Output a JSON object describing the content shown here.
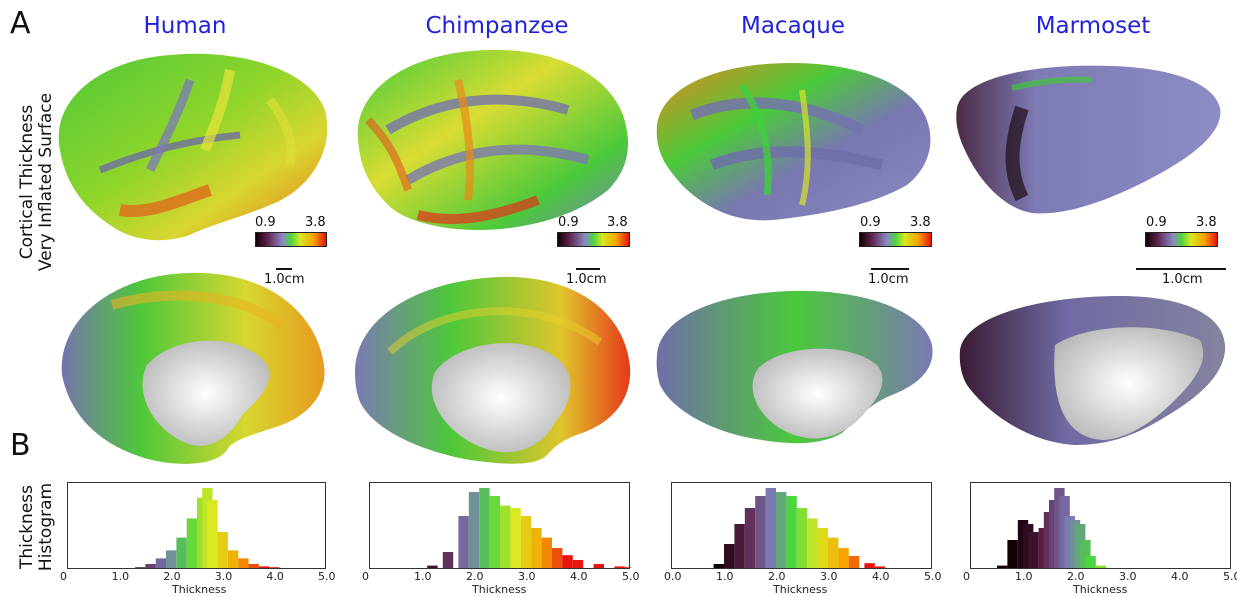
{
  "panel_labels": {
    "a": "A",
    "b": "B"
  },
  "side_labels": {
    "surface_line1": "Cortical Thickness",
    "surface_line2": "Very Inflated Surface",
    "hist_line1": "Thickness",
    "hist_line2": "Histogram"
  },
  "colorbar": {
    "min_label": "0.9",
    "max_label": "3.8"
  },
  "scale_label": "1.0cm",
  "species": [
    {
      "name": "Human",
      "accent": "#6fd13a"
    },
    {
      "name": "Chimpanzee",
      "accent": "#e8a41a"
    },
    {
      "name": "Macaque",
      "accent": "#7c7fb6"
    },
    {
      "name": "Marmoset",
      "accent": "#7f7bb0"
    }
  ],
  "hist_axis_title": "Thickness",
  "hist_ticks": [
    [
      "0",
      "1.0",
      "2.0",
      "3.0",
      "4.0",
      "5.0"
    ],
    [
      "0",
      "1.0",
      "2.0",
      "3.0",
      "4.0",
      "5.0"
    ],
    [
      "0.0",
      "1.0",
      "2.0",
      "3.0",
      "4.0",
      "5.0"
    ],
    [
      "0",
      "1.0",
      "2.0",
      "3.0",
      "4.0",
      "5.0"
    ]
  ],
  "chart_data": [
    {
      "type": "bar",
      "title": "",
      "xlabel": "Thickness",
      "ylabel": "",
      "xlim": [
        0,
        5
      ],
      "x": [
        1.4,
        1.6,
        1.8,
        2.0,
        2.2,
        2.4,
        2.6,
        2.7,
        2.8,
        3.0,
        3.2,
        3.4,
        3.6,
        3.8,
        4.0
      ],
      "values": [
        0.01,
        0.05,
        0.12,
        0.22,
        0.38,
        0.62,
        0.88,
        1.0,
        0.85,
        0.45,
        0.22,
        0.12,
        0.05,
        0.02,
        0.01
      ]
    },
    {
      "type": "bar",
      "title": "",
      "xlabel": "Thickness",
      "ylabel": "",
      "xlim": [
        0,
        5
      ],
      "x": [
        1.2,
        1.5,
        1.8,
        2.0,
        2.2,
        2.4,
        2.6,
        2.8,
        3.0,
        3.2,
        3.4,
        3.6,
        3.8,
        4.0,
        4.4,
        4.8,
        5.0
      ],
      "values": [
        0.03,
        0.2,
        0.65,
        0.95,
        1.0,
        0.9,
        0.78,
        0.75,
        0.65,
        0.5,
        0.38,
        0.25,
        0.16,
        0.1,
        0.05,
        0.02,
        0.01
      ]
    },
    {
      "type": "bar",
      "title": "",
      "xlabel": "Thickness",
      "ylabel": "",
      "xlim": [
        0,
        5
      ],
      "x": [
        0.9,
        1.1,
        1.3,
        1.5,
        1.7,
        1.9,
        2.1,
        2.3,
        2.5,
        2.7,
        2.9,
        3.1,
        3.3,
        3.5,
        3.8,
        4.0
      ],
      "values": [
        0.05,
        0.3,
        0.55,
        0.75,
        0.9,
        1.0,
        0.95,
        0.9,
        0.75,
        0.62,
        0.5,
        0.38,
        0.25,
        0.15,
        0.06,
        0.02
      ]
    },
    {
      "type": "bar",
      "title": "",
      "xlabel": "Thickness",
      "ylabel": "",
      "xlim": [
        0,
        5
      ],
      "x": [
        0.6,
        0.8,
        1.0,
        1.1,
        1.2,
        1.4,
        1.5,
        1.6,
        1.7,
        1.8,
        1.9,
        2.0,
        2.1,
        2.2,
        2.3,
        2.5
      ],
      "values": [
        0.03,
        0.35,
        0.6,
        0.55,
        0.45,
        0.5,
        0.7,
        0.85,
        1.0,
        0.9,
        0.65,
        0.6,
        0.55,
        0.35,
        0.15,
        0.03
      ]
    }
  ]
}
